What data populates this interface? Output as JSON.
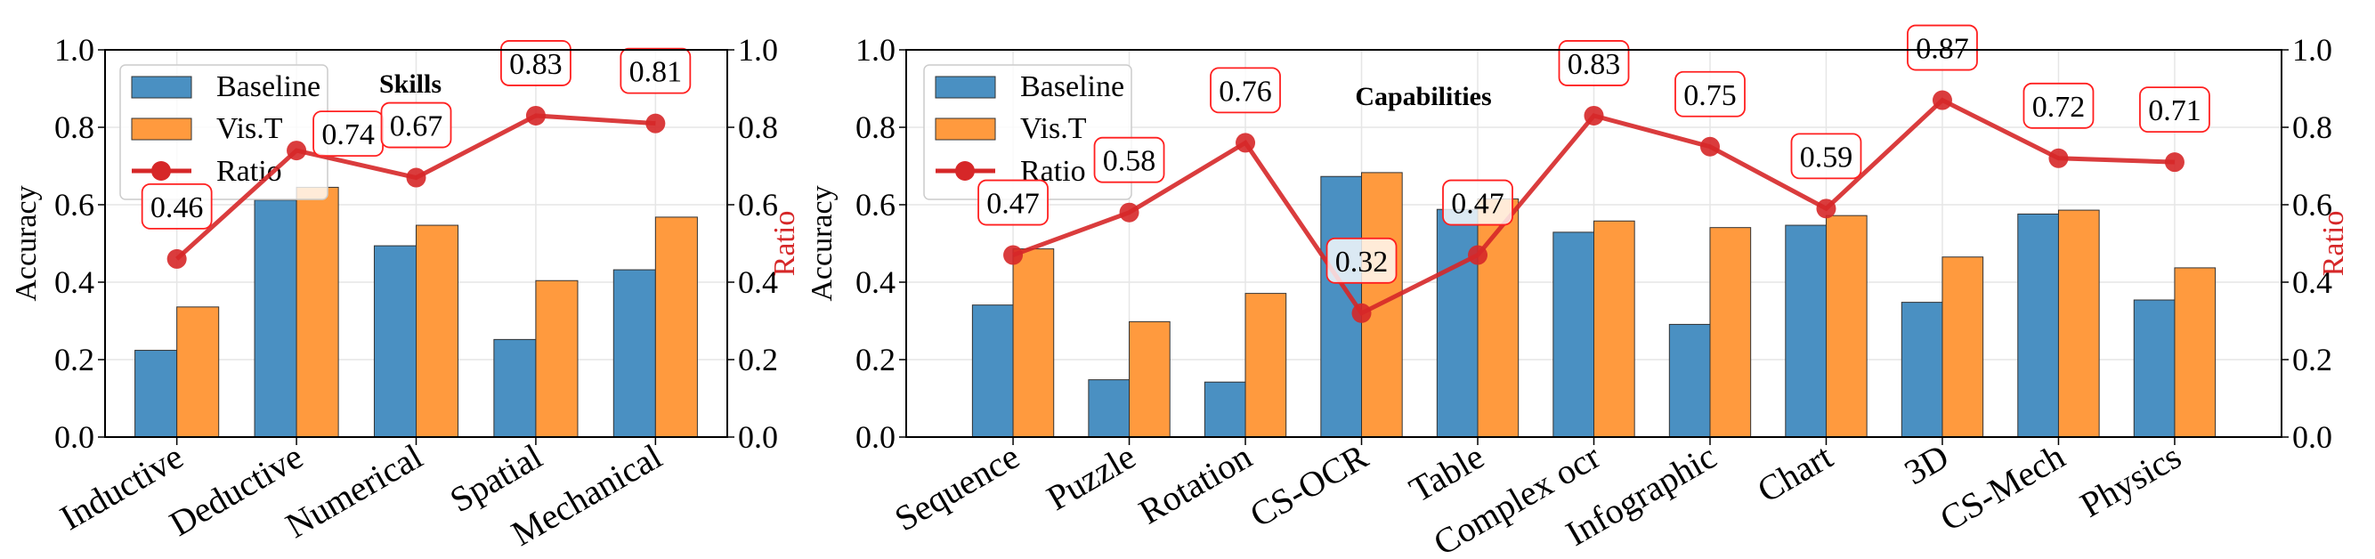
{
  "colors": {
    "baseline": "#4a90c2",
    "vist": "#ff9a3e",
    "ratio": "#d62728",
    "grid": "#e6e6e6"
  },
  "chart_data": [
    {
      "type": "bar",
      "title": "Skills",
      "ylabel": "Accuracy",
      "y2label": "Ratio",
      "ylim": [
        0,
        1
      ],
      "y2lim": [
        0,
        1
      ],
      "yticks": [
        "0.0",
        "0.2",
        "0.4",
        "0.6",
        "0.8",
        "1.0"
      ],
      "legend": [
        "Baseline",
        "Vis.T",
        "Ratio"
      ],
      "legend_position": "top-left",
      "categories": [
        "Inductive",
        "Deductive",
        "Numerical",
        "Spatial",
        "Mechanical"
      ],
      "series": [
        {
          "name": "Baseline",
          "values": [
            0.224,
            0.612,
            0.494,
            0.252,
            0.432
          ]
        },
        {
          "name": "Vis.T",
          "values": [
            0.336,
            0.645,
            0.547,
            0.404,
            0.568
          ]
        },
        {
          "name": "Ratio",
          "axis": "right",
          "values": [
            0.46,
            0.74,
            0.67,
            0.83,
            0.81
          ],
          "labels": [
            "0.46",
            "0.74",
            "0.67",
            "0.83",
            "0.81"
          ]
        }
      ]
    },
    {
      "type": "bar",
      "title": "Capabilities",
      "ylabel": "Accuracy",
      "y2label": "Ratio",
      "ylim": [
        0,
        1
      ],
      "y2lim": [
        0,
        1
      ],
      "yticks": [
        "0.0",
        "0.2",
        "0.4",
        "0.6",
        "0.8",
        "1.0"
      ],
      "legend": [
        "Baseline",
        "Vis.T",
        "Ratio"
      ],
      "legend_position": "top-left",
      "categories": [
        "Sequence",
        "Puzzle",
        "Rotation",
        "CS-OCR",
        "Table",
        "Complex ocr",
        "Infographic",
        "Chart",
        "3D",
        "CS-Mech",
        "Physics"
      ],
      "series": [
        {
          "name": "Baseline",
          "values": [
            0.341,
            0.148,
            0.142,
            0.673,
            0.588,
            0.529,
            0.291,
            0.547,
            0.348,
            0.576,
            0.354
          ]
        },
        {
          "name": "Vis.T",
          "values": [
            0.486,
            0.298,
            0.371,
            0.683,
            0.615,
            0.558,
            0.541,
            0.572,
            0.465,
            0.586,
            0.437
          ]
        },
        {
          "name": "Ratio",
          "axis": "right",
          "values": [
            0.47,
            0.58,
            0.76,
            0.32,
            0.47,
            0.83,
            0.75,
            0.59,
            0.87,
            0.72,
            0.71
          ],
          "labels": [
            "0.47",
            "0.58",
            "0.76",
            "0.32",
            "0.47",
            "0.83",
            "0.75",
            "0.59",
            "0.87",
            "0.72",
            "0.71"
          ]
        }
      ]
    }
  ]
}
